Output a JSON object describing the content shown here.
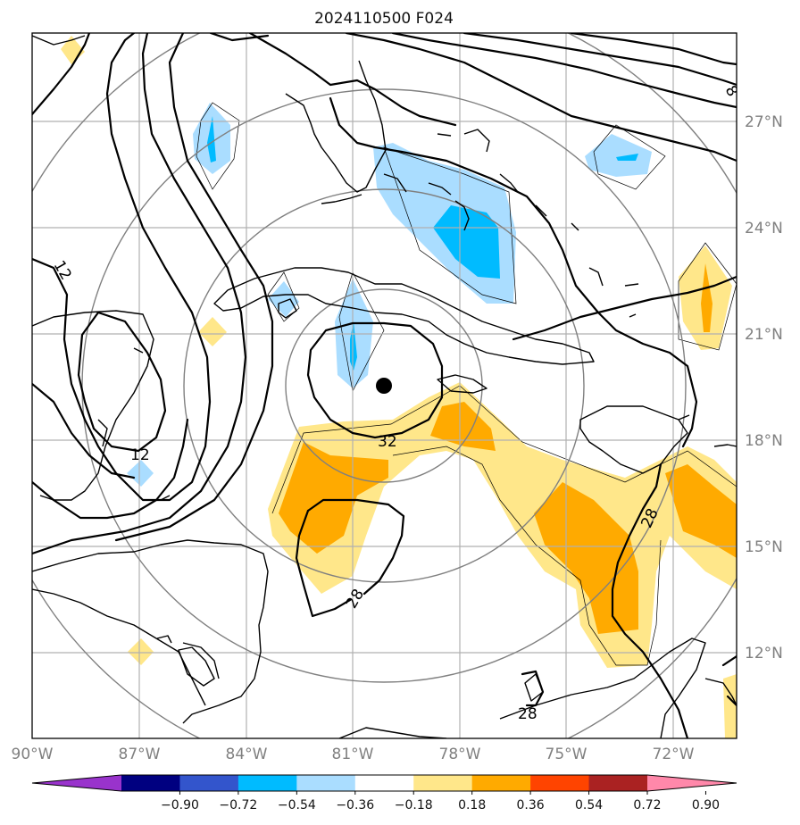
{
  "title": "2024110500 F024",
  "map": {
    "lon_range": [
      -90,
      -70.5
    ],
    "lat_range": [
      9.5,
      29.5
    ],
    "grid_on": true,
    "lon_ticks": [
      {
        "lon": -90,
        "label": "90°W"
      },
      {
        "lon": -87,
        "label": "87°W"
      },
      {
        "lon": -84,
        "label": "84°W"
      },
      {
        "lon": -81,
        "label": "81°W"
      },
      {
        "lon": -78,
        "label": "78°W"
      },
      {
        "lon": -75,
        "label": "75°W"
      },
      {
        "lon": -72,
        "label": "72°W"
      }
    ],
    "lat_ticks": [
      {
        "lat": 27,
        "label": "27°N"
      },
      {
        "lat": 24,
        "label": "24°N"
      },
      {
        "lat": 21,
        "label": "21°N"
      },
      {
        "lat": 18,
        "label": "18°N"
      },
      {
        "lat": 15,
        "label": "15°N"
      },
      {
        "lat": 12,
        "label": "12°N"
      }
    ],
    "storm_center": {
      "lon": -79.9,
      "lat": 19.4,
      "marker": "filled-circle"
    },
    "contour_labels": [
      "8",
      "12",
      "12",
      "32",
      "28",
      "28",
      "28"
    ]
  },
  "colorbar": {
    "orientation": "horizontal",
    "extend": "both",
    "colors": [
      "#9933cc",
      "#000080",
      "#3355cc",
      "#00bbff",
      "#aaddff",
      "#ffffff",
      "#ffe78a",
      "#ffaa00",
      "#ff4400",
      "#aa2222",
      "#ff88aa"
    ],
    "tick_labels": [
      "−0.90",
      "−0.72",
      "−0.54",
      "−0.36",
      "−0.18",
      "0.18",
      "0.36",
      "0.54",
      "0.72",
      "0.90"
    ]
  }
}
